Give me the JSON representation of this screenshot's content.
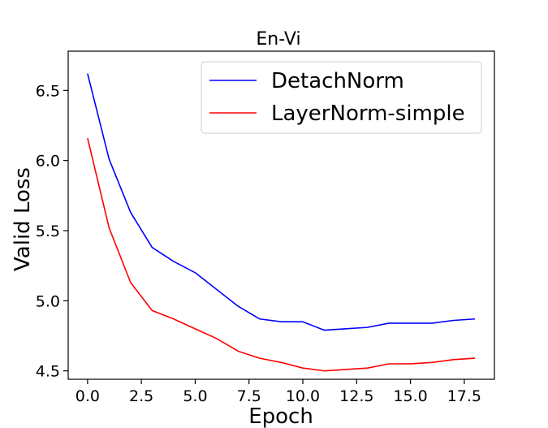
{
  "chart_data": {
    "type": "line",
    "title": "En-Vi",
    "xlabel": "Epoch",
    "ylabel": "Valid Loss",
    "xlim": [
      -0.9,
      18.9
    ],
    "ylim": [
      4.44,
      6.78
    ],
    "x_ticks": [
      0.0,
      2.5,
      5.0,
      7.5,
      10.0,
      12.5,
      15.0,
      17.5
    ],
    "x_tick_labels": [
      "0.0",
      "2.5",
      "5.0",
      "7.5",
      "10.0",
      "12.5",
      "15.0",
      "17.5"
    ],
    "y_ticks": [
      4.5,
      5.0,
      5.5,
      6.0,
      6.5
    ],
    "y_tick_labels": [
      "4.5",
      "5.0",
      "5.5",
      "6.0",
      "6.5"
    ],
    "grid": false,
    "legend_position": "top-right",
    "x": [
      0,
      1,
      2,
      3,
      4,
      5,
      6,
      7,
      8,
      9,
      10,
      11,
      12,
      13,
      14,
      15,
      16,
      17,
      18
    ],
    "series": [
      {
        "name": "DetachNorm",
        "color": "#0000ff",
        "values": [
          6.62,
          6.01,
          5.63,
          5.38,
          5.28,
          5.2,
          5.08,
          4.96,
          4.87,
          4.85,
          4.85,
          4.79,
          4.8,
          4.81,
          4.84,
          4.84,
          4.84,
          4.86,
          4.87
        ]
      },
      {
        "name": "LayerNorm-simple",
        "color": "#ff0000",
        "values": [
          6.16,
          5.52,
          5.13,
          4.93,
          4.87,
          4.8,
          4.73,
          4.64,
          4.59,
          4.56,
          4.52,
          4.5,
          4.51,
          4.52,
          4.55,
          4.55,
          4.56,
          4.58,
          4.59
        ]
      }
    ]
  }
}
